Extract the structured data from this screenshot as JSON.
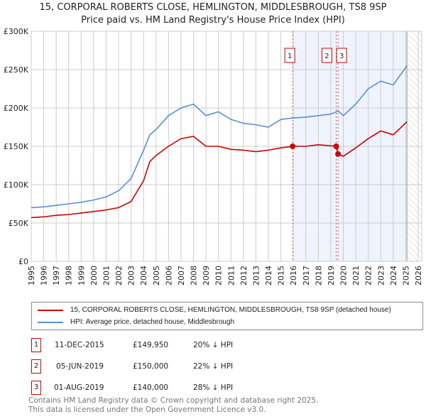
{
  "chart_data": {
    "type": "line",
    "title": "15, CORPORAL ROBERTS CLOSE, HEMLINGTON, MIDDLESBROUGH, TS8 9SP",
    "subtitle": "Price paid vs. HM Land Registry's House Price Index (HPI)",
    "xlim": [
      1995,
      2026
    ],
    "ylim": [
      0,
      300000
    ],
    "x_ticks": [
      "1995",
      "1996",
      "1997",
      "1998",
      "1999",
      "2000",
      "2001",
      "2002",
      "2003",
      "2004",
      "2005",
      "2006",
      "2007",
      "2008",
      "2009",
      "2010",
      "2011",
      "2012",
      "2013",
      "2014",
      "2015",
      "2016",
      "2017",
      "2018",
      "2019",
      "2020",
      "2021",
      "2022",
      "2023",
      "2024",
      "2025",
      "2026"
    ],
    "y_ticks": [
      {
        "v": 0,
        "label": "£0"
      },
      {
        "v": 50000,
        "label": "£50K"
      },
      {
        "v": 100000,
        "label": "£100K"
      },
      {
        "v": 150000,
        "label": "£150K"
      },
      {
        "v": 200000,
        "label": "£200K"
      },
      {
        "v": 250000,
        "label": "£250K"
      },
      {
        "v": 300000,
        "label": "£300K"
      }
    ],
    "grid": true,
    "series": [
      {
        "name": "15, CORPORAL ROBERTS CLOSE, HEMLINGTON, MIDDLESBROUGH, TS8 9SP (detached house)",
        "color": "#cc0000",
        "x": [
          1995,
          1996,
          1997,
          1998,
          1999,
          2000,
          2001,
          2002,
          2003,
          2004,
          2004.5,
          2005,
          2006,
          2007,
          2008,
          2009,
          2010,
          2011,
          2012,
          2013,
          2014,
          2015,
          2015.94,
          2016,
          2017,
          2018,
          2019.43,
          2019.58,
          2020,
          2021,
          2022,
          2023,
          2024,
          2025.1
        ],
        "y": [
          57000,
          58000,
          60000,
          61000,
          63000,
          65000,
          67000,
          70000,
          78000,
          105000,
          130000,
          138000,
          150000,
          160000,
          163000,
          150000,
          150000,
          146000,
          145000,
          143000,
          145000,
          148000,
          149950,
          150000,
          150000,
          152000,
          150000,
          140000,
          137000,
          148000,
          160000,
          170000,
          165000,
          182000
        ]
      },
      {
        "name": "HPI: Average price, detached house, Middlesbrough",
        "color": "#5b8fd0",
        "x": [
          1995,
          1996,
          1997,
          1998,
          1999,
          2000,
          2001,
          2002,
          2003,
          2004,
          2004.5,
          2005,
          2006,
          2007,
          2008,
          2009,
          2010,
          2011,
          2012,
          2013,
          2014,
          2015,
          2016,
          2017,
          2018,
          2019,
          2019.6,
          2020,
          2021,
          2022,
          2023,
          2024,
          2025.1
        ],
        "y": [
          70000,
          71000,
          73000,
          75000,
          77000,
          80000,
          84000,
          92000,
          108000,
          145000,
          165000,
          172000,
          190000,
          200000,
          205000,
          190000,
          195000,
          185000,
          180000,
          178000,
          175000,
          185000,
          187000,
          188000,
          190000,
          192000,
          196000,
          190000,
          205000,
          225000,
          235000,
          230000,
          255000
        ]
      }
    ],
    "sales": [
      {
        "n": "1",
        "x": 2015.94,
        "y": 149950,
        "date": "11-DEC-2015",
        "price": "£149,950",
        "hpi": "20% ↓ HPI"
      },
      {
        "n": "2",
        "x": 2019.43,
        "y": 150000,
        "date": "05-JUN-2019",
        "price": "£150,000",
        "hpi": "22% ↓ HPI"
      },
      {
        "n": "3",
        "x": 2019.58,
        "y": 140000,
        "date": "01-AUG-2019",
        "price": "£140,000",
        "hpi": "28% ↓ HPI"
      }
    ],
    "shade_from": 2016,
    "data_end": 2025.1
  },
  "footer": {
    "line1": "Contains HM Land Registry data © Crown copyright and database right 2025.",
    "line2": "This data is licensed under the Open Government Licence v3.0."
  }
}
